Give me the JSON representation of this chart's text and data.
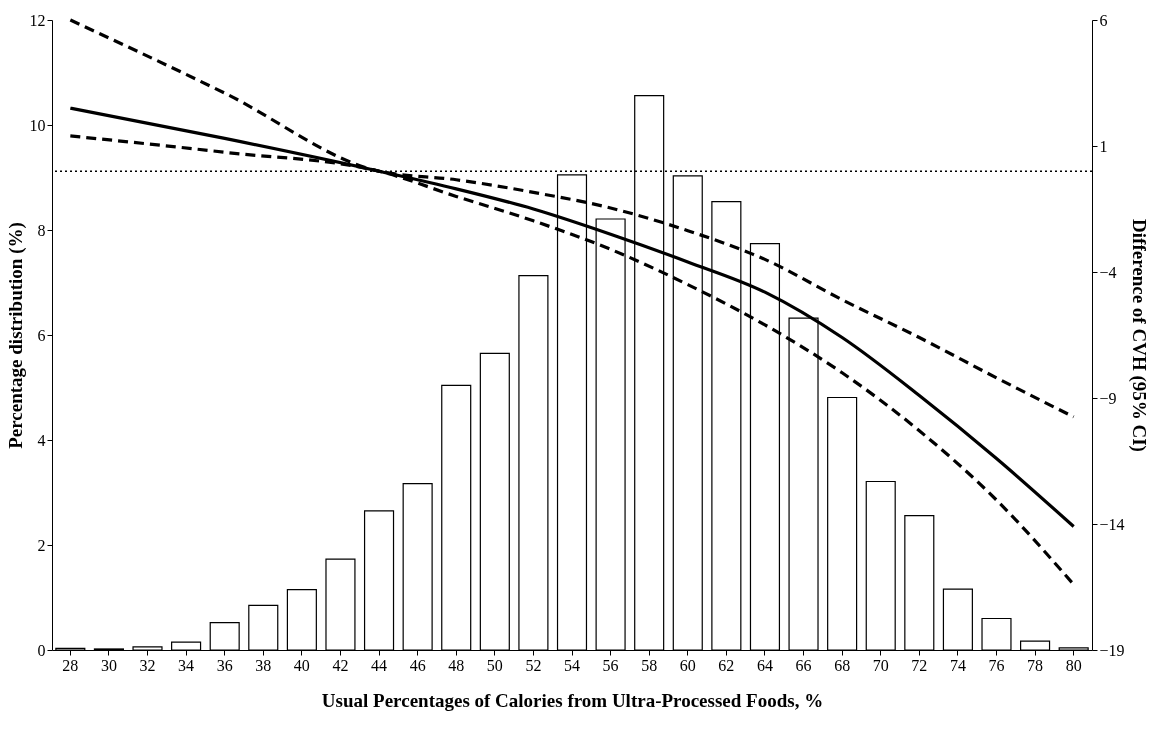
{
  "chart_data": {
    "type": "bar",
    "xlabel": "Usual Percentages of Calories from Ultra-Processed Foods, %",
    "ylabel": "Percentage distribution (%)",
    "y2label": "Difference of CVH (95% CI)",
    "categories": [
      "28",
      "30",
      "32",
      "34",
      "36",
      "38",
      "40",
      "42",
      "44",
      "46",
      "48",
      "50",
      "52",
      "54",
      "56",
      "58",
      "60",
      "62",
      "64",
      "66",
      "68",
      "70",
      "72",
      "74",
      "76",
      "78",
      "80"
    ],
    "ylim": [
      0,
      12
    ],
    "yticks": [
      0,
      2,
      4,
      6,
      8,
      10,
      12
    ],
    "y2lim": [
      -19,
      6
    ],
    "y2ticks": [
      -19,
      -14,
      -9,
      -4,
      1,
      6
    ],
    "series": [
      {
        "color": "#ffffff",
        "values": [
          0.03,
          0.02,
          0.06,
          0.15,
          0.52,
          0.85,
          1.15,
          1.73,
          2.65,
          3.17,
          5.04,
          5.65,
          7.13,
          9.05,
          8.21,
          10.56,
          9.03,
          8.54,
          7.74,
          6.32,
          4.81,
          3.21,
          2.56,
          1.16,
          0.6,
          0.17,
          0.04
        ]
      },
      {
        "type": "line",
        "axis": "y2",
        "color": "#000000",
        "line_style": "solid",
        "x": [
          "28",
          "36",
          "44",
          "48",
          "52",
          "56",
          "60",
          "64",
          "68",
          "72",
          "76",
          "80"
        ],
        "values": [
          2.5,
          1.3,
          0.0,
          -0.7,
          -1.5,
          -2.5,
          -3.6,
          -4.8,
          -6.6,
          -8.9,
          -11.4,
          -14.1
        ]
      },
      {
        "type": "line",
        "axis": "y2",
        "color": "#000000",
        "line_style": "dashed",
        "x": [
          "28",
          "36",
          "44",
          "48",
          "52",
          "56",
          "60",
          "64",
          "68",
          "72",
          "76",
          "80"
        ],
        "values": [
          6.0,
          3.1,
          0.0,
          -0.34,
          -0.84,
          -1.46,
          -2.36,
          -3.5,
          -5.1,
          -6.6,
          -8.2,
          -9.75
        ]
      },
      {
        "type": "line",
        "axis": "y2",
        "color": "#000000",
        "line_style": "dashed",
        "x": [
          "28",
          "36",
          "44",
          "48",
          "52",
          "56",
          "60",
          "64",
          "68",
          "72",
          "76",
          "80"
        ],
        "values": [
          1.4,
          0.75,
          0.0,
          -1.0,
          -1.97,
          -3.1,
          -4.5,
          -6.1,
          -8.0,
          -10.3,
          -13.05,
          -16.4
        ]
      }
    ],
    "ref_lines": [
      {
        "axis": "y2",
        "value": 0,
        "line_style": "dotted",
        "color": "#000000"
      }
    ]
  }
}
